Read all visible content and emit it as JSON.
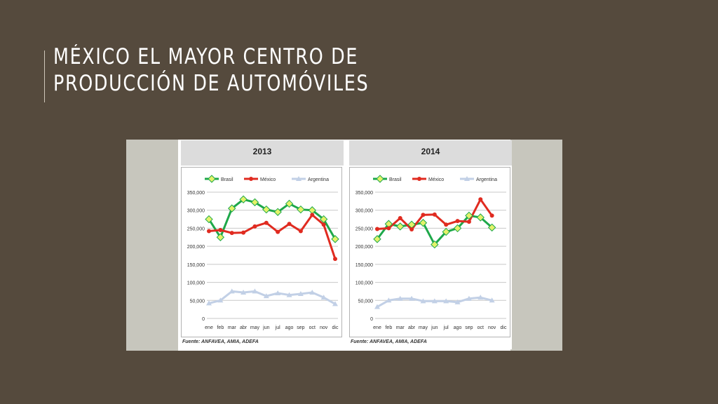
{
  "slide": {
    "title": "MÉXICO EL MAYOR CENTRO DE PRODUCCIÓN DE AUTOMÓVILES"
  },
  "colors": {
    "background": "#554a3d",
    "brasil": "#1ea84a",
    "brasil_marker": "#e4f26a",
    "mexico": "#e02b20",
    "argentina": "#c2d0e6"
  },
  "chart_data": [
    {
      "type": "line",
      "title": "2013",
      "source": "Fuente: ANFAVEA, AMIA, ADEFA",
      "x": [
        "ene",
        "feb",
        "mar",
        "abr",
        "may",
        "jun",
        "jul",
        "ago",
        "sep",
        "oct",
        "nov",
        "dic"
      ],
      "ylim": [
        0,
        350000
      ],
      "yticks": [
        "0",
        "50,000",
        "100,000",
        "150,000",
        "200,000",
        "250,000",
        "300,000",
        "350,000"
      ],
      "grid": true,
      "legend": "top",
      "series": [
        {
          "name": "Brasil",
          "values": [
            275000,
            225000,
            305000,
            330000,
            322000,
            302000,
            295000,
            318000,
            302000,
            300000,
            275000,
            220000
          ]
        },
        {
          "name": "México",
          "values": [
            242000,
            245000,
            237000,
            238000,
            255000,
            265000,
            240000,
            262000,
            242000,
            287000,
            260000,
            165000
          ]
        },
        {
          "name": "Argentina",
          "values": [
            42000,
            50000,
            75000,
            72000,
            75000,
            62000,
            70000,
            65000,
            68000,
            72000,
            58000,
            40000
          ]
        }
      ]
    },
    {
      "type": "line",
      "title": "2014",
      "source": "Fuente: ANFAVEA, AMIA, ADEFA",
      "x": [
        "ene",
        "feb",
        "mar",
        "abr",
        "may",
        "jun",
        "jul",
        "ago",
        "sep",
        "oct",
        "nov",
        "dic"
      ],
      "ylim": [
        0,
        350000
      ],
      "yticks": [
        "0",
        "50,000",
        "100,000",
        "150,000",
        "200,000",
        "250,000",
        "300,000",
        "350,000"
      ],
      "grid": true,
      "legend": "top",
      "series": [
        {
          "name": "Brasil",
          "values": [
            220000,
            262000,
            255000,
            260000,
            265000,
            205000,
            240000,
            250000,
            285000,
            280000,
            252000,
            null
          ]
        },
        {
          "name": "México",
          "values": [
            248000,
            250000,
            278000,
            247000,
            287000,
            288000,
            260000,
            270000,
            268000,
            330000,
            285000,
            null
          ]
        },
        {
          "name": "Argentina",
          "values": [
            32000,
            50000,
            55000,
            55000,
            48000,
            48000,
            48000,
            45000,
            55000,
            58000,
            50000,
            null
          ]
        }
      ]
    }
  ]
}
